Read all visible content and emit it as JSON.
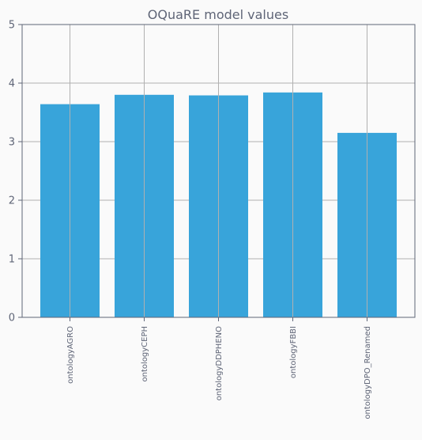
{
  "chart_data": {
    "type": "bar",
    "title": "OQuaRE model values",
    "xlabel": "",
    "ylabel": "",
    "categories": [
      "ontologyAGRO",
      "ontologyCEPH",
      "ontologyDDPHENO",
      "ontologyFBBI",
      "ontologyDPO_Renamed"
    ],
    "values": [
      3.64,
      3.8,
      3.79,
      3.84,
      3.15
    ],
    "ylim": [
      0,
      5
    ],
    "yticks": [
      0,
      1,
      2,
      3,
      4,
      5
    ],
    "grid": true,
    "bar_color": "#38a4da",
    "grid_color": "#b0b0b0",
    "text_color": "#5f6577",
    "axis_color": "#5f6577",
    "background": "#fafafa"
  }
}
